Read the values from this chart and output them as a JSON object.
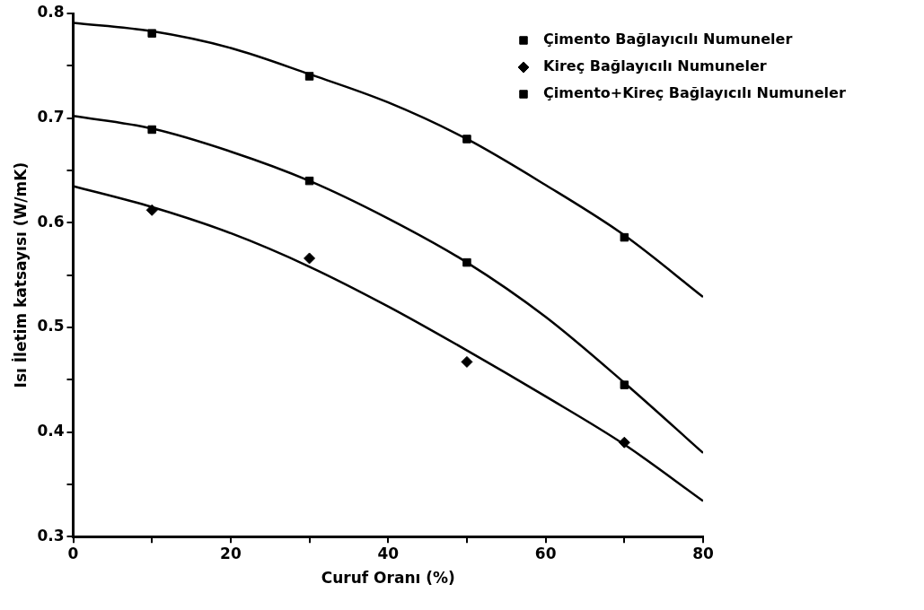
{
  "chart_data": {
    "type": "scatter",
    "xlabel": "Curuf Oranı (%)",
    "ylabel": "Isı İletim katsayısı (W/mK)",
    "xlim": [
      0,
      80
    ],
    "xticks": [
      0,
      {
        "value": 10,
        "label": null
      },
      20,
      {
        "value": 30,
        "label": null
      },
      40,
      {
        "value": 50,
        "label": null
      },
      60,
      {
        "value": 70,
        "label": null
      },
      80
    ],
    "ylim": [
      0.3,
      0.8
    ],
    "yticks": [
      0.3,
      {
        "value": 0.35,
        "label": null
      },
      0.4,
      {
        "value": 0.45,
        "label": null
      },
      0.5,
      {
        "value": 0.55,
        "label": null
      },
      0.6,
      {
        "value": 0.65,
        "label": null
      },
      0.7,
      {
        "value": 0.75,
        "label": null
      },
      0.8
    ],
    "legend": "top right",
    "series": [
      {
        "name": "Çimento Bağlayıcılı Numuneler",
        "color": "#000000",
        "marker": "square",
        "x": [
          10,
          30,
          50,
          70
        ],
        "values": [
          0.781,
          0.74,
          0.68,
          0.586
        ]
      },
      {
        "name": "Kireç Bağlayıcılı Numuneler",
        "color": "#000000",
        "marker": "diamond",
        "x": [
          10,
          30,
          50,
          70
        ],
        "values": [
          0.612,
          0.566,
          0.467,
          0.39
        ]
      },
      {
        "name": "Çimento+Kireç Bağlayıcılı Numuneler",
        "color": "#000000",
        "marker": "square",
        "x": [
          10,
          30,
          50,
          70
        ],
        "values": [
          0.689,
          0.64,
          0.562,
          0.445
        ]
      },
      {
        "type": "line",
        "color": "#000000",
        "marker": "none",
        "x": [
          0,
          10,
          20,
          30,
          40,
          50,
          60,
          70,
          80
        ],
        "values": [
          0.791,
          0.783,
          0.767,
          0.742,
          0.715,
          0.68,
          0.636,
          0.588,
          0.529
        ]
      },
      {
        "type": "line",
        "color": "#000000",
        "marker": "none",
        "x": [
          0,
          10,
          20,
          30,
          40,
          50,
          60,
          70,
          80
        ],
        "values": [
          0.702,
          0.69,
          0.668,
          0.64,
          0.604,
          0.562,
          0.51,
          0.447,
          0.38
        ]
      },
      {
        "type": "line",
        "color": "#000000",
        "marker": "none",
        "x": [
          0,
          10,
          20,
          30,
          40,
          50,
          60,
          70,
          80
        ],
        "values": [
          0.635,
          0.615,
          0.59,
          0.558,
          0.52,
          0.478,
          0.434,
          0.388,
          0.334
        ]
      }
    ]
  }
}
